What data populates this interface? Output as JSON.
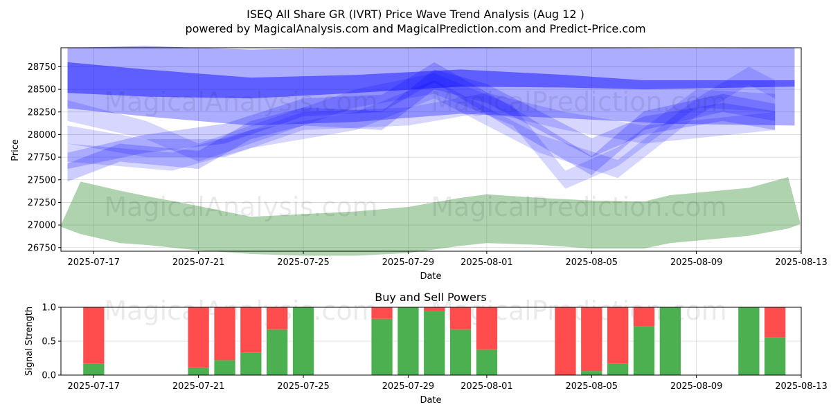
{
  "header": {
    "title": "ISEQ All Share GR (IVRT) Price Wave Trend Analysis (Aug 12 )",
    "subtitle": "powered by MagicalAnalysis.com and MagicalPrediction.com and Predict-Price.com"
  },
  "watermark": {
    "left": "MagicalAnalysis.com",
    "right": "MagicalPrediction.com"
  },
  "colors": {
    "blue_band": "#0000ff",
    "green_band": "#2e8b2e",
    "buy": "#4caf50",
    "sell": "#ff4d4d"
  },
  "chart_data": [
    {
      "type": "area",
      "title": "",
      "xlabel": "Date",
      "ylabel": "Price",
      "x_range": [
        "2025-07-15T18:00",
        "2025-08-13T00:00"
      ],
      "ylim": [
        26710,
        28960
      ],
      "yticks": [
        26750,
        27000,
        27250,
        27500,
        27750,
        28000,
        28250,
        28500,
        28750
      ],
      "xticks": [
        "2025-07-17",
        "2025-07-21",
        "2025-07-25",
        "2025-07-29",
        "2025-08-01",
        "2025-08-05",
        "2025-08-09",
        "2025-08-13"
      ],
      "grid": true,
      "series": [
        {
          "band": "wide",
          "points": [
            {
              "x": "2025-07-16",
              "low": 28290,
              "high": 28960
            },
            {
              "x": "2025-07-19",
              "low": 28200,
              "high": 28980
            },
            {
              "x": "2025-07-23",
              "low": 28100,
              "high": 28940
            },
            {
              "x": "2025-07-27",
              "low": 28140,
              "high": 28960
            },
            {
              "x": "2025-07-31",
              "low": 28230,
              "high": 28970
            },
            {
              "x": "2025-08-04",
              "low": 28180,
              "high": 28960
            },
            {
              "x": "2025-08-08",
              "low": 28120,
              "high": 28950
            },
            {
              "x": "2025-08-12T18:00",
              "low": 28100,
              "high": 28960
            }
          ]
        },
        {
          "band": "main-trend",
          "points": [
            {
              "x": "2025-07-16",
              "low": 28460,
              "high": 28800
            },
            {
              "x": "2025-07-19",
              "low": 28420,
              "high": 28720
            },
            {
              "x": "2025-07-23",
              "low": 28400,
              "high": 28630
            },
            {
              "x": "2025-07-27",
              "low": 28460,
              "high": 28660
            },
            {
              "x": "2025-07-31",
              "low": 28530,
              "high": 28720
            },
            {
              "x": "2025-08-04",
              "low": 28520,
              "high": 28660
            },
            {
              "x": "2025-08-07",
              "low": 28500,
              "high": 28600
            },
            {
              "x": "2025-08-12T18:00",
              "low": 28530,
              "high": 28600
            }
          ]
        },
        {
          "band": "wave-1",
          "points": [
            {
              "x": "2025-07-16",
              "low": 27620,
              "high": 27800
            },
            {
              "x": "2025-07-19",
              "low": 27800,
              "high": 28000
            },
            {
              "x": "2025-07-22",
              "low": 27900,
              "high": 28120
            },
            {
              "x": "2025-07-25",
              "low": 28200,
              "high": 28400
            },
            {
              "x": "2025-07-28",
              "low": 28250,
              "high": 28440
            },
            {
              "x": "2025-07-30",
              "low": 28580,
              "high": 28800
            },
            {
              "x": "2025-08-02",
              "low": 28050,
              "high": 28300
            },
            {
              "x": "2025-08-05",
              "low": 27550,
              "high": 27760
            },
            {
              "x": "2025-08-07",
              "low": 28050,
              "high": 28260
            },
            {
              "x": "2025-08-10",
              "low": 28250,
              "high": 28450
            },
            {
              "x": "2025-08-12",
              "low": 28150,
              "high": 28340
            }
          ]
        },
        {
          "band": "wave-2",
          "points": [
            {
              "x": "2025-07-16",
              "low": 27480,
              "high": 27680
            },
            {
              "x": "2025-07-18",
              "low": 27700,
              "high": 27900
            },
            {
              "x": "2025-07-21",
              "low": 27620,
              "high": 27820
            },
            {
              "x": "2025-07-23",
              "low": 27950,
              "high": 28150
            },
            {
              "x": "2025-07-25",
              "low": 28100,
              "high": 28300
            },
            {
              "x": "2025-07-28",
              "low": 28050,
              "high": 28260
            },
            {
              "x": "2025-07-30",
              "low": 28500,
              "high": 28720
            },
            {
              "x": "2025-08-01",
              "low": 28350,
              "high": 28560
            },
            {
              "x": "2025-08-05",
              "low": 27750,
              "high": 27960
            },
            {
              "x": "2025-08-07",
              "low": 28000,
              "high": 28200
            },
            {
              "x": "2025-08-10",
              "low": 28150,
              "high": 28350
            },
            {
              "x": "2025-08-12",
              "low": 28050,
              "high": 28260
            }
          ]
        },
        {
          "band": "wave-3",
          "points": [
            {
              "x": "2025-07-16",
              "low": 28150,
              "high": 28380
            },
            {
              "x": "2025-07-19",
              "low": 27950,
              "high": 28150
            },
            {
              "x": "2025-07-21",
              "low": 27700,
              "high": 27900
            },
            {
              "x": "2025-07-24",
              "low": 28000,
              "high": 28200
            },
            {
              "x": "2025-07-27",
              "low": 28300,
              "high": 28500
            },
            {
              "x": "2025-07-30",
              "low": 28450,
              "high": 28680
            },
            {
              "x": "2025-08-02",
              "low": 28100,
              "high": 28320
            },
            {
              "x": "2025-08-04",
              "low": 27400,
              "high": 27600
            },
            {
              "x": "2025-08-06",
              "low": 27650,
              "high": 27860
            },
            {
              "x": "2025-08-09",
              "low": 28300,
              "high": 28500
            },
            {
              "x": "2025-08-12",
              "low": 28250,
              "high": 28450
            }
          ]
        },
        {
          "band": "wave-4",
          "points": [
            {
              "x": "2025-07-16",
              "low": 27900,
              "high": 28100
            },
            {
              "x": "2025-07-19",
              "low": 27750,
              "high": 27950
            },
            {
              "x": "2025-07-22",
              "low": 27750,
              "high": 27950
            },
            {
              "x": "2025-07-25",
              "low": 28050,
              "high": 28250
            },
            {
              "x": "2025-07-29",
              "low": 28100,
              "high": 28300
            },
            {
              "x": "2025-08-01",
              "low": 28250,
              "high": 28460
            },
            {
              "x": "2025-08-04",
              "low": 28050,
              "high": 28250
            },
            {
              "x": "2025-08-07",
              "low": 27900,
              "high": 28100
            },
            {
              "x": "2025-08-12",
              "low": 28050,
              "high": 28250
            }
          ]
        },
        {
          "band": "wave-5",
          "points": [
            {
              "x": "2025-07-16",
              "low": 27700,
              "high": 27900
            },
            {
              "x": "2025-07-20",
              "low": 27600,
              "high": 27800
            },
            {
              "x": "2025-07-23",
              "low": 27850,
              "high": 28050
            },
            {
              "x": "2025-07-27",
              "low": 28050,
              "high": 28250
            },
            {
              "x": "2025-07-30",
              "low": 28400,
              "high": 28600
            },
            {
              "x": "2025-08-03",
              "low": 27800,
              "high": 28000
            },
            {
              "x": "2025-08-06",
              "low": 27520,
              "high": 27720
            },
            {
              "x": "2025-08-09",
              "low": 28200,
              "high": 28400
            },
            {
              "x": "2025-08-11",
              "low": 28550,
              "high": 28750
            },
            {
              "x": "2025-08-12",
              "low": 28400,
              "high": 28600
            }
          ]
        },
        {
          "band": "lower-green",
          "points": [
            {
              "x": "2025-07-15T18:00",
              "low": 26980,
              "high": 27000
            },
            {
              "x": "2025-07-16T12:00",
              "low": 26900,
              "high": 27480
            },
            {
              "x": "2025-07-18",
              "low": 26800,
              "high": 27380
            },
            {
              "x": "2025-07-19",
              "low": 26780,
              "high": 27320
            },
            {
              "x": "2025-07-21",
              "low": 26720,
              "high": 27210
            },
            {
              "x": "2025-07-23",
              "low": 26680,
              "high": 27090
            },
            {
              "x": "2025-07-25",
              "low": 26660,
              "high": 27120
            },
            {
              "x": "2025-07-27",
              "low": 26660,
              "high": 27150
            },
            {
              "x": "2025-07-29",
              "low": 26690,
              "high": 27200
            },
            {
              "x": "2025-07-31",
              "low": 26770,
              "high": 27300
            },
            {
              "x": "2025-08-01",
              "low": 26800,
              "high": 27340
            },
            {
              "x": "2025-08-03",
              "low": 26780,
              "high": 27300
            },
            {
              "x": "2025-08-05",
              "low": 26740,
              "high": 27270
            },
            {
              "x": "2025-08-07",
              "low": 26740,
              "high": 27260
            },
            {
              "x": "2025-08-08",
              "low": 26800,
              "high": 27330
            },
            {
              "x": "2025-08-11",
              "low": 26880,
              "high": 27410
            },
            {
              "x": "2025-08-12T12:00",
              "low": 26960,
              "high": 27530
            },
            {
              "x": "2025-08-12T23:00",
              "low": 27010,
              "high": 27030
            }
          ]
        }
      ]
    },
    {
      "type": "bar",
      "title": "Buy and Sell Powers",
      "xlabel": "Date",
      "ylabel": "Signal Strength",
      "x_range": [
        "2025-07-15T18:00",
        "2025-08-13T00:00"
      ],
      "ylim": [
        0,
        1
      ],
      "yticks": [
        0.0,
        0.5,
        1.0
      ],
      "xticks": [
        "2025-07-17",
        "2025-07-21",
        "2025-07-25",
        "2025-07-29",
        "2025-08-01",
        "2025-08-05",
        "2025-08-09",
        "2025-08-13"
      ],
      "grid": true,
      "series": [
        {
          "name": "buy",
          "values": [
            0.17,
            0.11,
            0.22,
            0.33,
            0.67,
            1.0,
            0.83,
            1.0,
            0.94,
            0.67,
            0.38,
            0.0,
            0.06,
            0.17,
            0.72,
            1.0,
            1.0,
            0.56
          ]
        },
        {
          "name": "sell",
          "values": [
            0.83,
            0.89,
            0.78,
            0.67,
            0.33,
            0.0,
            0.17,
            0.0,
            0.06,
            0.33,
            0.62,
            1.0,
            0.94,
            0.83,
            0.28,
            0.0,
            0.0,
            0.44
          ]
        }
      ],
      "categories": [
        "2025-07-17",
        "2025-07-21",
        "2025-07-22",
        "2025-07-23",
        "2025-07-24",
        "2025-07-25",
        "2025-07-28",
        "2025-07-29",
        "2025-07-30",
        "2025-07-31",
        "2025-08-01",
        "2025-08-04",
        "2025-08-05",
        "2025-08-06",
        "2025-08-07",
        "2025-08-08",
        "2025-08-11",
        "2025-08-12"
      ]
    }
  ]
}
